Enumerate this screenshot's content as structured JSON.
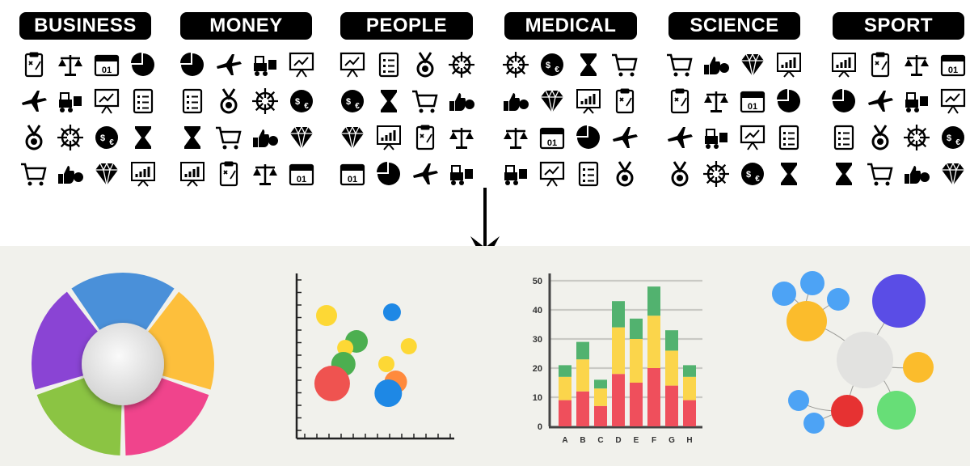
{
  "categories": [
    {
      "label": "BUSINESS",
      "icons": [
        "clipboard-strategy-icon",
        "scales-icon",
        "calendar-icon",
        "pie-chart-icon",
        "airplane-icon",
        "forklift-icon",
        "presentation-board-icon",
        "checklist-icon",
        "medal-icon",
        "ship-wheel-icon",
        "currency-exchange-icon",
        "hourglass-icon",
        "shopping-cart-icon",
        "thumbs-up-money-icon",
        "diamond-icon",
        "presentation-chart-icon"
      ]
    },
    {
      "label": "MONEY",
      "icons": [
        "dollar-coin-icon",
        "growth-arrow-icon",
        "target-icon",
        "scales-icon",
        "hand-coin-icon",
        "wallet-icon",
        "dollar-cycle-icon",
        "bar-growth-icon",
        "cash-stack-icon",
        "coin-stack-icon",
        "piggy-bank-icon",
        "credit-card-icon",
        "calculator-money-icon",
        "euro-coin-icon",
        "dollar-chart-icon",
        "money-bag-icon"
      ]
    },
    {
      "label": "PEOPLE",
      "icons": [
        "group-icon",
        "reader-icon",
        "speaking-person-icon",
        "crowd-icon",
        "head-gears-icon",
        "celebrating-person-icon",
        "speaker-podium-icon",
        "talking-head-icon",
        "sign-holder-icon",
        "office-worker-icon",
        "team-circle-icon",
        "user-avatar-icon",
        "team-icon",
        "support-agent-icon",
        "woman-icon",
        "man-icon"
      ]
    },
    {
      "label": "MEDICAL",
      "icons": [
        "ambulance-icon",
        "stethoscope-monitor-icon",
        "pills-icon",
        "medicine-jar-icon",
        "iv-drip-icon",
        "heartbeat-icon",
        "heart-pills-icon",
        "mortar-pestle-icon",
        "thermometer-icon",
        "medical-chat-icon",
        "surgical-tools-icon",
        "nurse-icon",
        "bandage-icon",
        "stethoscope-icon",
        "scale-weight-icon",
        "virus-icon"
      ]
    },
    {
      "label": "SCIENCE",
      "icons": [
        "lightbulb-icon",
        "graduation-cap-icon",
        "open-book-icon",
        "puzzle-icon",
        "rocket-icon",
        "toolbox-icon",
        "eraser-icon",
        "palette-icon",
        "dna-icon",
        "molecule-dots-icon",
        "hexagon-molecule-icon",
        "planet-icon",
        "diploma-icon",
        "radio-tower-icon",
        "owl-icon",
        "calculator-icon"
      ]
    },
    {
      "label": "SPORT",
      "icons": [
        "runner-icon",
        "flexed-arm-icon",
        "waist-measure-icon",
        "stopwatch-icon",
        "kettlebell-icon",
        "dumbbell-icon",
        "biceps-icon",
        "tennis-ball-icon",
        "scale-icon",
        "weightlifter-icon",
        "sprinter-icon",
        "height-arrows-icon",
        "yoga-mat-icon",
        "footprints-icon",
        "exercise-bike-icon",
        "no-smoking-icon"
      ]
    }
  ],
  "colors": {
    "donut": [
      "#4a90d9",
      "#fdbf3c",
      "#f0448c",
      "#8bc443",
      "#8a44d4"
    ],
    "donut_center": "#e4e4e4",
    "bubble_blue": "#1e88e5",
    "bubble_yellow": "#fdd835",
    "bubble_green": "#4caf50",
    "bubble_red": "#ef5350",
    "bubble_orange": "#ff8a3d",
    "bar_red": "#ef4f5c",
    "bar_yellow": "#fbd54b",
    "bar_green": "#52b26f"
  },
  "chart_data": [
    {
      "type": "pie",
      "segments": [
        {
          "color": "#4a90d9",
          "value": 1
        },
        {
          "color": "#fdbf3c",
          "value": 1
        },
        {
          "color": "#f0448c",
          "value": 1
        },
        {
          "color": "#8bc443",
          "value": 1
        },
        {
          "color": "#8a44d4",
          "value": 1
        }
      ]
    },
    {
      "type": "scatter",
      "points": [
        {
          "x": 1.6,
          "y": 7.6,
          "size": 13,
          "color": "#fdd835"
        },
        {
          "x": 5.1,
          "y": 7.8,
          "size": 11,
          "color": "#1e88e5"
        },
        {
          "x": 3.2,
          "y": 6.0,
          "size": 14,
          "color": "#4caf50"
        },
        {
          "x": 2.6,
          "y": 5.6,
          "size": 10,
          "color": "#fdd835"
        },
        {
          "x": 6.0,
          "y": 5.7,
          "size": 10,
          "color": "#fdd835"
        },
        {
          "x": 2.5,
          "y": 4.6,
          "size": 15,
          "color": "#4caf50"
        },
        {
          "x": 4.8,
          "y": 4.6,
          "size": 10,
          "color": "#fdd835"
        },
        {
          "x": 1.9,
          "y": 3.4,
          "size": 22,
          "color": "#ef5350"
        },
        {
          "x": 5.3,
          "y": 3.5,
          "size": 14,
          "color": "#ff8a3d"
        },
        {
          "x": 4.9,
          "y": 2.8,
          "size": 17,
          "color": "#1e88e5"
        }
      ],
      "xlim": [
        0,
        8
      ],
      "ylim": [
        0,
        10
      ]
    },
    {
      "type": "bar",
      "stacked": true,
      "categories": [
        "A",
        "B",
        "C",
        "D",
        "E",
        "F",
        "G",
        "H"
      ],
      "ylim": [
        0,
        50
      ],
      "yticks": [
        0,
        10,
        20,
        30,
        40,
        50
      ],
      "series": [
        {
          "color": "#ef4f5c",
          "values": [
            9,
            12,
            7,
            18,
            15,
            20,
            14,
            9
          ]
        },
        {
          "color": "#fbd54b",
          "values": [
            8,
            11,
            6,
            16,
            15,
            18,
            12,
            8
          ]
        },
        {
          "color": "#52b26f",
          "values": [
            4,
            6,
            3,
            9,
            7,
            10,
            7,
            4
          ]
        }
      ]
    },
    {
      "type": "bubble-network",
      "nodes": [
        {
          "id": "center",
          "color": "#e2e2e0",
          "size": 35
        },
        {
          "id": "n1",
          "color": "#5a4de6",
          "size": 33
        },
        {
          "id": "n2",
          "color": "#fbbc2c",
          "size": 25
        },
        {
          "id": "n3",
          "color": "#fbbc2c",
          "size": 19
        },
        {
          "id": "n4",
          "color": "#67de77",
          "size": 24
        },
        {
          "id": "n5",
          "color": "#e63232",
          "size": 20
        },
        {
          "id": "n6",
          "color": "#4da3f5",
          "size": 15
        },
        {
          "id": "n7",
          "color": "#4da3f5",
          "size": 15
        },
        {
          "id": "n8",
          "color": "#4da3f5",
          "size": 14
        },
        {
          "id": "n9",
          "color": "#4da3f5",
          "size": 13
        },
        {
          "id": "n10",
          "color": "#4da3f5",
          "size": 13
        }
      ],
      "edges": [
        [
          "center",
          "n1"
        ],
        [
          "center",
          "n2"
        ],
        [
          "center",
          "n3"
        ],
        [
          "center",
          "n4"
        ],
        [
          "center",
          "n5"
        ],
        [
          "n2",
          "n6"
        ],
        [
          "n2",
          "n7"
        ],
        [
          "n2",
          "n8"
        ],
        [
          "n5",
          "n9"
        ],
        [
          "n5",
          "n10"
        ]
      ]
    }
  ]
}
